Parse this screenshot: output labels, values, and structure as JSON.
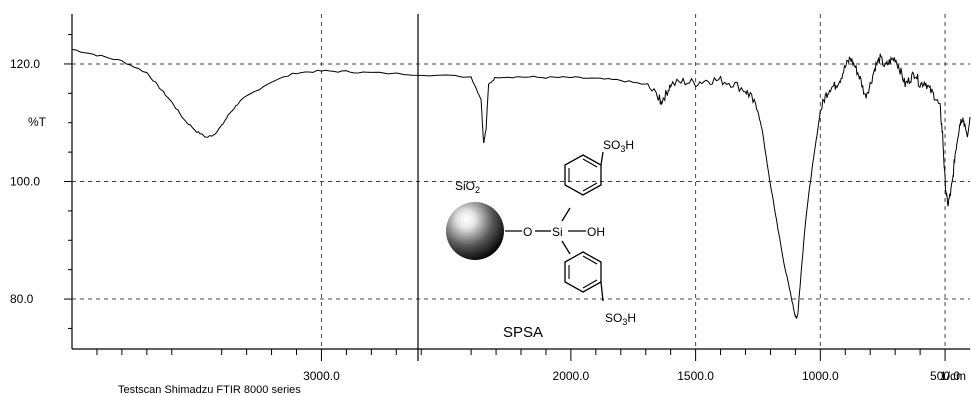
{
  "chart_data": {
    "type": "line",
    "ylabel": "%T",
    "xunit": "1/cm",
    "footer": "Testscan Shimadzu FTIR 8000 series",
    "xlim": [
      4000,
      400
    ],
    "ylim": [
      71.5,
      128.5
    ],
    "x_reversed": true,
    "grid": true,
    "x_ticks": [
      {
        "value": 3000,
        "label": "3000.0"
      },
      {
        "value": 2000,
        "label": "2000.0"
      },
      {
        "value": 1500,
        "label": "1500.0"
      },
      {
        "value": 1000,
        "label": "1000.0"
      },
      {
        "value": 500,
        "label": "500.0"
      }
    ],
    "y_ticks": [
      {
        "value": 120,
        "label": "120.0"
      },
      {
        "value": 100,
        "label": "100.0"
      },
      {
        "value": 80,
        "label": "80.0"
      }
    ],
    "series": [
      {
        "x": [
          4000,
          3900,
          3800,
          3700,
          3650,
          3600,
          3550,
          3500,
          3460,
          3430,
          3400,
          3370,
          3330,
          3300,
          3200,
          3100,
          3000,
          2900,
          2800,
          2600,
          2400,
          2360,
          2350,
          2340,
          2330,
          2300,
          2200,
          2100,
          2000,
          1900,
          1800,
          1700,
          1650,
          1640,
          1620,
          1600,
          1550,
          1500,
          1450,
          1400,
          1350,
          1300,
          1280,
          1250,
          1230,
          1210,
          1190,
          1170,
          1150,
          1130,
          1110,
          1100,
          1095,
          1090,
          1080,
          1060,
          1040,
          1020,
          1000,
          980,
          960,
          940,
          920,
          900,
          880,
          860,
          840,
          820,
          800,
          780,
          760,
          740,
          720,
          700,
          680,
          660,
          640,
          620,
          600,
          580,
          560,
          540,
          520,
          510,
          500,
          490,
          480,
          470,
          460,
          450,
          440,
          430,
          420,
          410,
          400
        ],
        "y": [
          122.5,
          121.5,
          120.5,
          118.5,
          116,
          113.5,
          110.5,
          108.5,
          107.5,
          108,
          109.5,
          111.5,
          113.5,
          114.5,
          117,
          118.5,
          118.8,
          118.7,
          118.5,
          118.2,
          117.8,
          114,
          106.5,
          109,
          116.5,
          117.8,
          117.8,
          117.7,
          117.7,
          117.5,
          117.2,
          116.5,
          114.5,
          113.5,
          114.8,
          116.5,
          117,
          116.8,
          117.3,
          117.2,
          116.7,
          115.5,
          114.5,
          112,
          108,
          102,
          97,
          92,
          87,
          83,
          79,
          77,
          76.8,
          77.5,
          83,
          93,
          100,
          106,
          112,
          114.5,
          116,
          116.3,
          117.5,
          119.5,
          121,
          119.5,
          117.5,
          114.5,
          116.5,
          119.5,
          121,
          119.5,
          120.5,
          121,
          119,
          116.5,
          117.5,
          118.5,
          116.5,
          117,
          115.5,
          114.5,
          112.5,
          108,
          100,
          96,
          97.5,
          100,
          104.5,
          107.5,
          110,
          111,
          109.5,
          107.5,
          111
        ]
      }
    ],
    "annotations": {
      "support_label": "SiO",
      "support_sub": "2",
      "sulfonic_top": "SO",
      "sulfonic_bottom": "SO",
      "sulfonic_sub": "3",
      "sulfonic_tail": "H",
      "o_label": "O",
      "si_label": "Si",
      "oh_label": "OH",
      "compound_label": "SPSA"
    }
  }
}
